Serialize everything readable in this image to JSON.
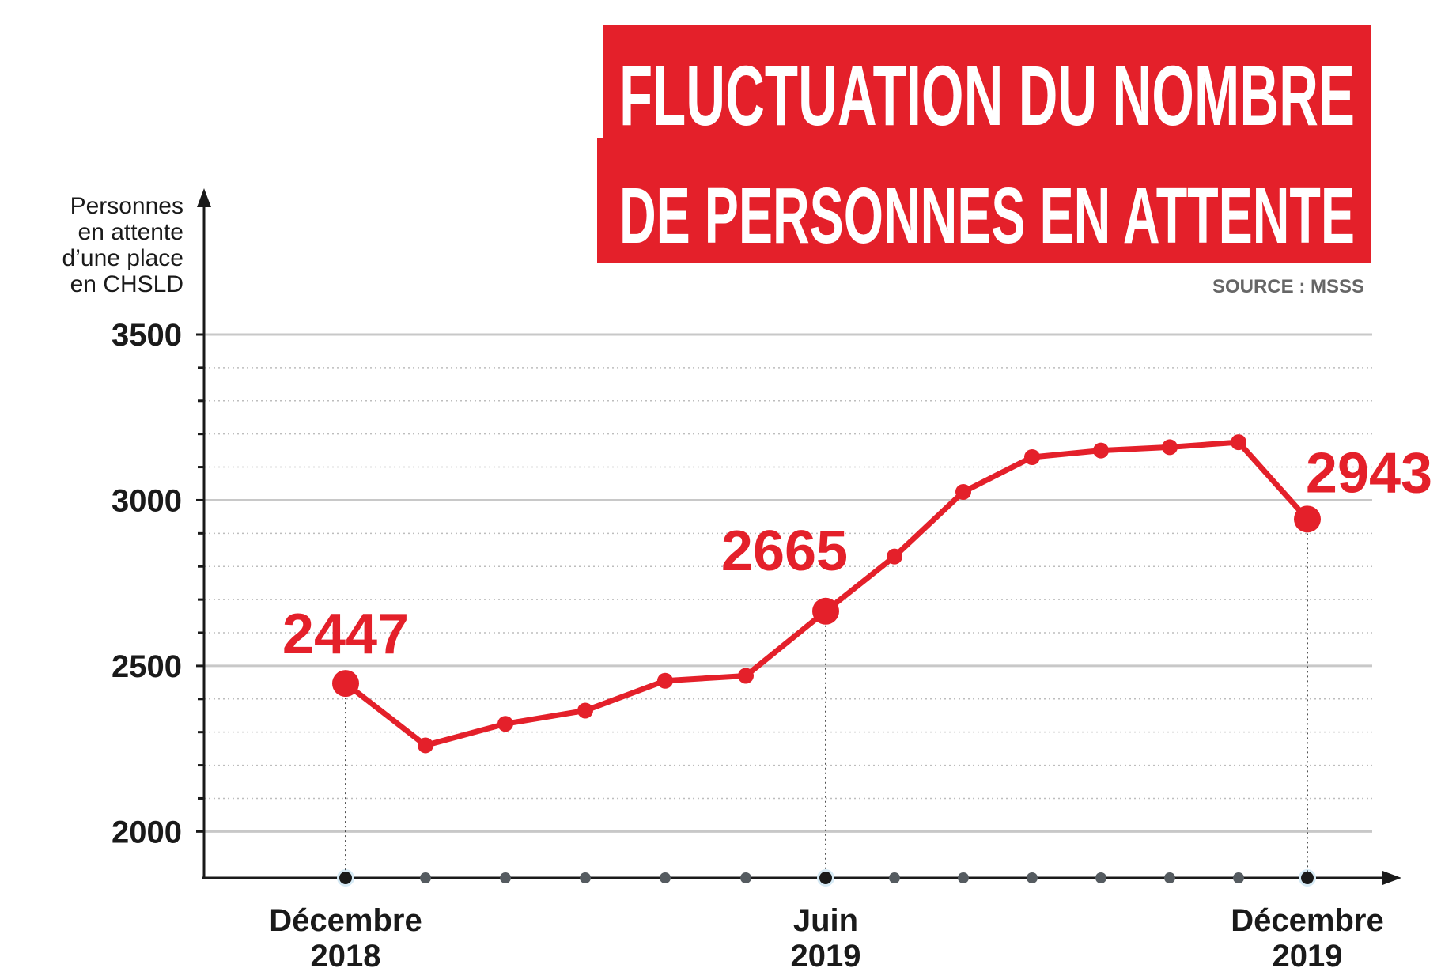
{
  "title": {
    "line1": "FLUCTUATION DU NOMBRE",
    "line2": "DE PERSONNES EN ATTENTE"
  },
  "source": "SOURCE : MSSS",
  "colors": {
    "accent": "#e4202a",
    "axis": "#1a1a1a",
    "grid": "#c8c8c8",
    "dot": "#555b60"
  },
  "chart_data": {
    "type": "line",
    "ylabel": [
      "Personnes",
      "en attente",
      "d’une place",
      "en CHSLD"
    ],
    "ylim": [
      1860,
      3500
    ],
    "yticks": [
      "2000",
      "2500",
      "3000",
      "3500"
    ],
    "x_labels": [
      {
        "index": 0,
        "line1": "Décembre",
        "line2": "2018"
      },
      {
        "index": 6,
        "line1": "Juin",
        "line2": "2019"
      },
      {
        "index": 13,
        "line1": "Décembre",
        "line2": "2019"
      }
    ],
    "series": [
      {
        "values": [
          2447,
          2260,
          2325,
          2365,
          2455,
          2470,
          2665,
          2830,
          3025,
          3130,
          3150,
          3160,
          3175,
          2943
        ]
      }
    ],
    "highlighted": [
      {
        "index": 0,
        "label": "2447"
      },
      {
        "index": 6,
        "label": "2665"
      },
      {
        "index": 13,
        "label": "2943"
      }
    ],
    "grid": true
  }
}
